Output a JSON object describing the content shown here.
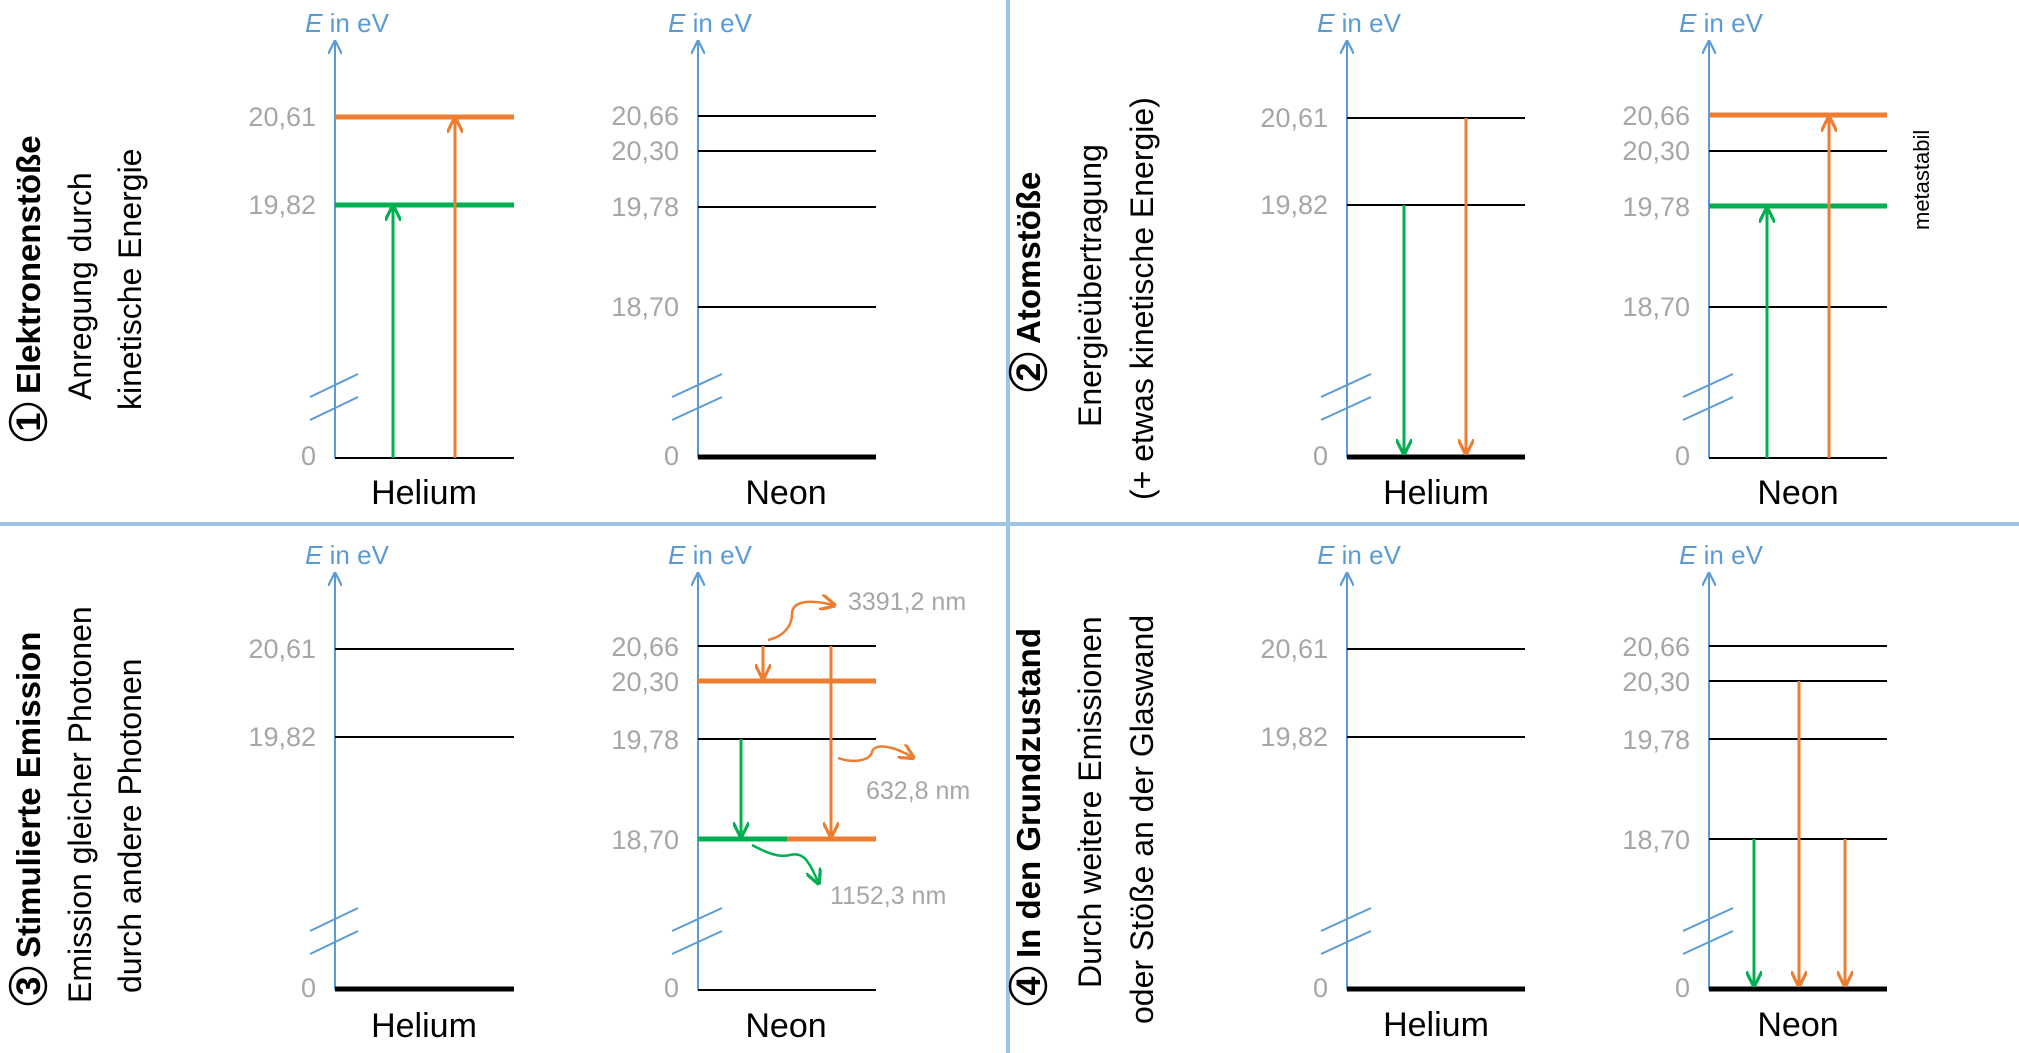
{
  "colors": {
    "axis": "#5b9bd5",
    "divider": "#9dc3e6",
    "level": "#000000",
    "orange": "#ed7d31",
    "green": "#00b050",
    "value_label": "#a6a6a6"
  },
  "axis_label": {
    "symbol": "E",
    "unit": "in eV"
  },
  "zero_label": "0",
  "atoms": {
    "helium": "Helium",
    "neon": "Neon"
  },
  "helium_levels": [
    "20,61",
    "19,82"
  ],
  "neon_levels": [
    "20,66",
    "20,30",
    "19,78",
    "18,70"
  ],
  "panels": {
    "p1": {
      "number": "1",
      "title": "Elektronenstöße",
      "line1": "Anregung durch",
      "line2": "kinetische Energie"
    },
    "p2": {
      "number": "2",
      "title": "Atomstöße",
      "line1": "Energieübertragung",
      "line2": "(+ etwas kinetische Energie)",
      "note": "metastabil"
    },
    "p3": {
      "number": "3",
      "title": "Stimulierte Emission",
      "line1": "Emission gleicher Photonen",
      "line2": "durch andere Photonen",
      "wave1": "3391,2 nm",
      "wave2": "632,8 nm",
      "wave3": "1152,3 nm"
    },
    "p4": {
      "number": "4",
      "title": "In den Grundzustand",
      "line1": "Durch weitere Emissionen",
      "line2": "oder Stöße an der Glaswand"
    }
  }
}
